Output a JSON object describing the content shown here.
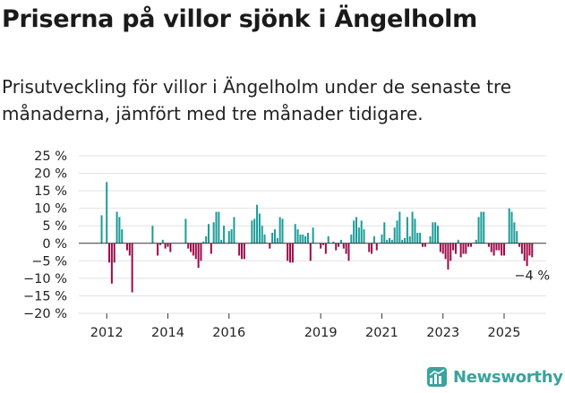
{
  "title": "Priserna på villor sjönk i Ängelholm",
  "subtitle": "Prisutveckling för villor i Ängelholm under de senaste tre månaderna, jämfört med tre månader tidigare.",
  "brand": {
    "name": "Newsworthy",
    "icon": "newsworthy-logo-icon"
  },
  "colors": {
    "positive": "#1a9c98",
    "negative": "#9e0a4a",
    "grid": "#e2e2e2",
    "axis": "#333333"
  },
  "chart_data": {
    "type": "bar",
    "title": "",
    "xlabel": "",
    "ylabel": "",
    "ylim": [
      -20,
      25
    ],
    "yticks": [
      25,
      20,
      15,
      10,
      5,
      0,
      -5,
      -10,
      -15,
      -20
    ],
    "ytick_labels": [
      "25 %",
      "20 %",
      "15 %",
      "10 %",
      "5 %",
      "0 %",
      "−5 %",
      "−10 %",
      "−15 %",
      "−20 %"
    ],
    "x_start": "2011-11",
    "xticks": [
      "2012",
      "2014",
      "2016",
      "2019",
      "2021",
      "2023",
      "2025"
    ],
    "xtick_months": [
      "2012-01",
      "2014-01",
      "2016-01",
      "2019-01",
      "2021-01",
      "2023-01",
      "2025-01"
    ],
    "grid": true,
    "last_value_label": "−4 %",
    "values": [
      8,
      0,
      17.5,
      -5.5,
      -11.5,
      -5.5,
      9,
      7.5,
      4,
      0,
      -2,
      -3.5,
      -14,
      0,
      0,
      0,
      0,
      0,
      0,
      0,
      5,
      0,
      -3.5,
      -0.5,
      1,
      -1.5,
      -1,
      -2.5,
      0,
      0,
      0,
      0,
      0,
      7,
      -1.5,
      -2.5,
      -3.5,
      -4.5,
      -7,
      -5,
      0.5,
      2,
      5.5,
      -3,
      6,
      9,
      9,
      1,
      5,
      0,
      3.5,
      4,
      7.5,
      0,
      -3.5,
      -4.5,
      -4.5,
      0,
      0,
      6.5,
      7,
      11,
      8.5,
      5,
      2.5,
      0,
      -1.5,
      3,
      4,
      1.5,
      7.5,
      7,
      0,
      -5,
      -5.5,
      -5.5,
      5.5,
      4,
      2.5,
      2.5,
      2,
      3,
      -5,
      4.5,
      0,
      0,
      -1.5,
      -0.5,
      -3,
      2,
      0,
      0.5,
      -2,
      -1,
      1,
      -1.5,
      -3,
      -5,
      2.5,
      6.5,
      7.5,
      4.5,
      6.5,
      4,
      0,
      -2.5,
      -3,
      2,
      -2,
      0,
      2.5,
      6,
      1,
      1.5,
      1,
      4.5,
      6.5,
      9,
      1,
      1.5,
      7.5,
      2,
      9,
      7,
      3,
      3,
      -1,
      -1,
      0,
      2,
      6,
      6,
      5,
      -2.5,
      -3,
      -4.5,
      -7.5,
      -5,
      -2,
      -3,
      1,
      -4,
      -3,
      -3,
      -1,
      -1,
      0,
      1,
      7.5,
      9,
      9,
      0,
      -1,
      -2.5,
      -3.5,
      -2,
      -2,
      -3.5,
      -3.5,
      0,
      10,
      9,
      6,
      3.5,
      -1,
      -3,
      -5,
      -6.5,
      -3.5,
      -4
    ]
  }
}
